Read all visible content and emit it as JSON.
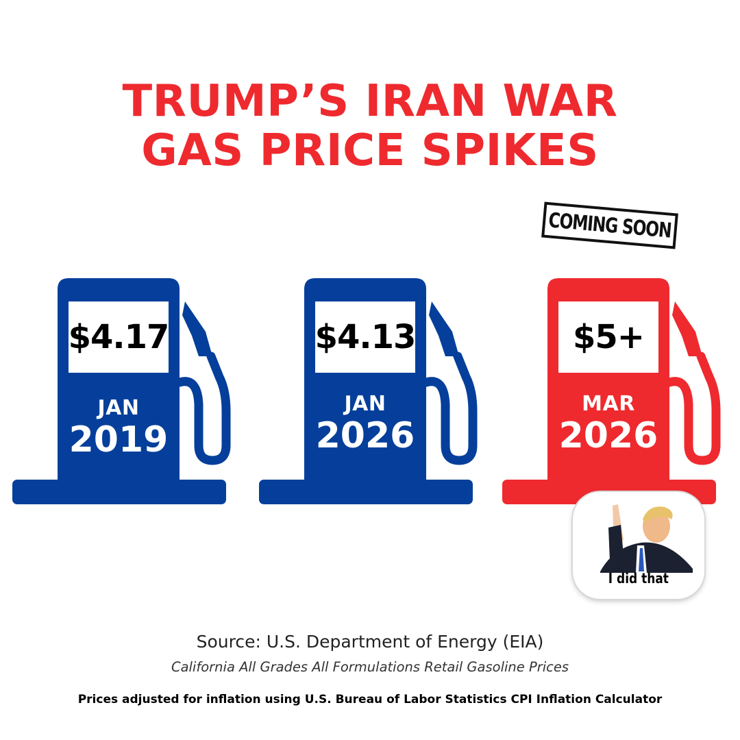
{
  "title": {
    "line1": "TRUMP’S IRAN WAR",
    "line2": "GAS PRICE SPIKES",
    "color": "#ee2a2f"
  },
  "stamp": {
    "label": "COMING SOON"
  },
  "pumps": [
    {
      "price": "$4.17",
      "month": "JAN",
      "year": "2019",
      "color": "#053f9b"
    },
    {
      "price": "$4.13",
      "month": "JAN",
      "year": "2026",
      "color": "#053f9b"
    },
    {
      "price": "$5+",
      "month": "MAR",
      "year": "2026",
      "color": "#ee2a2f"
    }
  ],
  "sticker": {
    "caption": "I did that"
  },
  "footer": {
    "source": "Source: U.S. Department of Energy (EIA)",
    "source_detail": "California All Grades All Formulations Retail Gasoline Prices",
    "note": "Prices adjusted for inflation using U.S. Bureau of Labor Statistics CPI Inflation Calculator"
  }
}
